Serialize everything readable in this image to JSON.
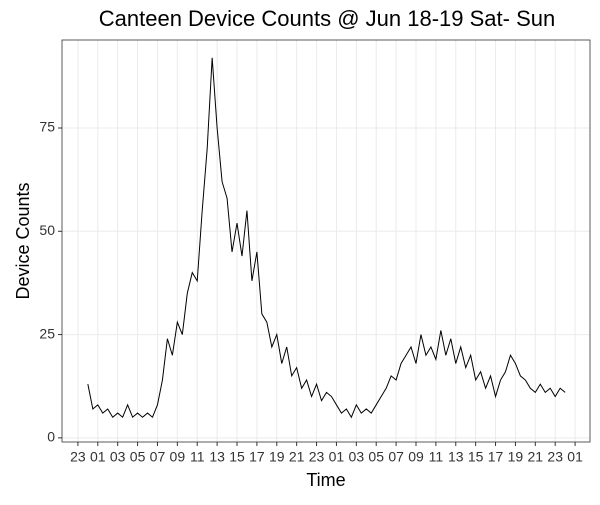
{
  "chart_data": {
    "type": "line",
    "title": "Canteen Device Counts @ Jun 18-19 Sat- Sun",
    "x_label": "Time",
    "y_label": "Device Counts",
    "x": [
      24,
      24.5,
      25,
      25.5,
      26,
      26.5,
      27,
      27.5,
      28,
      28.5,
      29,
      29.5,
      30,
      30.5,
      31,
      31.5,
      32,
      32.5,
      33,
      33.5,
      34,
      34.5,
      35,
      35.5,
      36,
      36.5,
      37,
      37.5,
      38,
      38.5,
      39,
      39.5,
      40,
      40.5,
      41,
      41.5,
      42,
      42.5,
      43,
      43.5,
      44,
      44.5,
      45,
      45.5,
      46,
      46.5,
      47,
      47.5,
      48,
      48.5,
      49,
      49.5,
      50,
      50.5,
      51,
      51.5,
      52,
      52.5,
      53,
      53.5,
      54,
      54.5,
      55,
      55.5,
      56,
      56.5,
      57,
      57.5,
      58,
      58.5,
      59,
      59.5,
      60,
      60.5,
      61,
      61.5,
      62,
      62.5,
      63,
      63.5,
      64,
      64.5,
      65,
      65.5,
      66,
      66.5,
      67,
      67.5,
      68,
      68.5,
      69,
      69.5,
      70,
      70.5,
      71,
      71.5,
      72
    ],
    "series": [
      {
        "name": "Device Counts",
        "color": "#000000",
        "values": [
          13,
          7,
          8,
          6,
          7,
          5,
          6,
          5,
          8,
          5,
          6,
          5,
          6,
          5,
          8,
          14,
          24,
          20,
          28,
          25,
          35,
          40,
          38,
          55,
          70,
          92,
          75,
          62,
          58,
          45,
          52,
          44,
          55,
          38,
          45,
          30,
          28,
          22,
          25,
          18,
          22,
          15,
          17,
          12,
          14,
          10,
          13,
          9,
          11,
          10,
          8,
          6,
          7,
          5,
          8,
          6,
          7,
          6,
          8,
          10,
          12,
          15,
          14,
          18,
          20,
          22,
          18,
          25,
          20,
          22,
          19,
          26,
          20,
          24,
          18,
          22,
          17,
          20,
          14,
          16,
          12,
          15,
          10,
          14,
          16,
          20,
          18,
          15,
          14,
          12,
          11,
          13,
          11,
          12,
          10,
          12,
          11
        ]
      }
    ],
    "xlim": [
      21.4,
      74.5
    ],
    "xticks": [
      23,
      {
        "value": 25,
        "label": "01"
      },
      {
        "value": 27,
        "label": "03"
      },
      {
        "value": 29,
        "label": "05"
      },
      {
        "value": 31,
        "label": "07"
      },
      {
        "value": 33,
        "label": "09"
      },
      {
        "value": 35,
        "label": "11"
      },
      {
        "value": 37,
        "label": "13"
      },
      {
        "value": 39,
        "label": "15"
      },
      {
        "value": 41,
        "label": "17"
      },
      {
        "value": 43,
        "label": "19"
      },
      {
        "value": 45,
        "label": "21"
      },
      {
        "value": 47,
        "label": "23"
      },
      {
        "value": 49,
        "label": "01"
      },
      {
        "value": 51,
        "label": "03"
      },
      {
        "value": 53,
        "label": "05"
      },
      {
        "value": 55,
        "label": "07"
      },
      {
        "value": 57,
        "label": "09"
      },
      {
        "value": 59,
        "label": "11"
      },
      {
        "value": 61,
        "label": "13"
      },
      {
        "value": 63,
        "label": "15"
      },
      {
        "value": 65,
        "label": "17"
      },
      {
        "value": 67,
        "label": "19"
      },
      {
        "value": 69,
        "label": "21"
      },
      {
        "value": 71,
        "label": "23"
      },
      {
        "value": 73,
        "label": "01"
      }
    ],
    "ylim": [
      -1,
      96.3
    ],
    "yticks": [
      0,
      25,
      50,
      75
    ],
    "grid": true
  }
}
